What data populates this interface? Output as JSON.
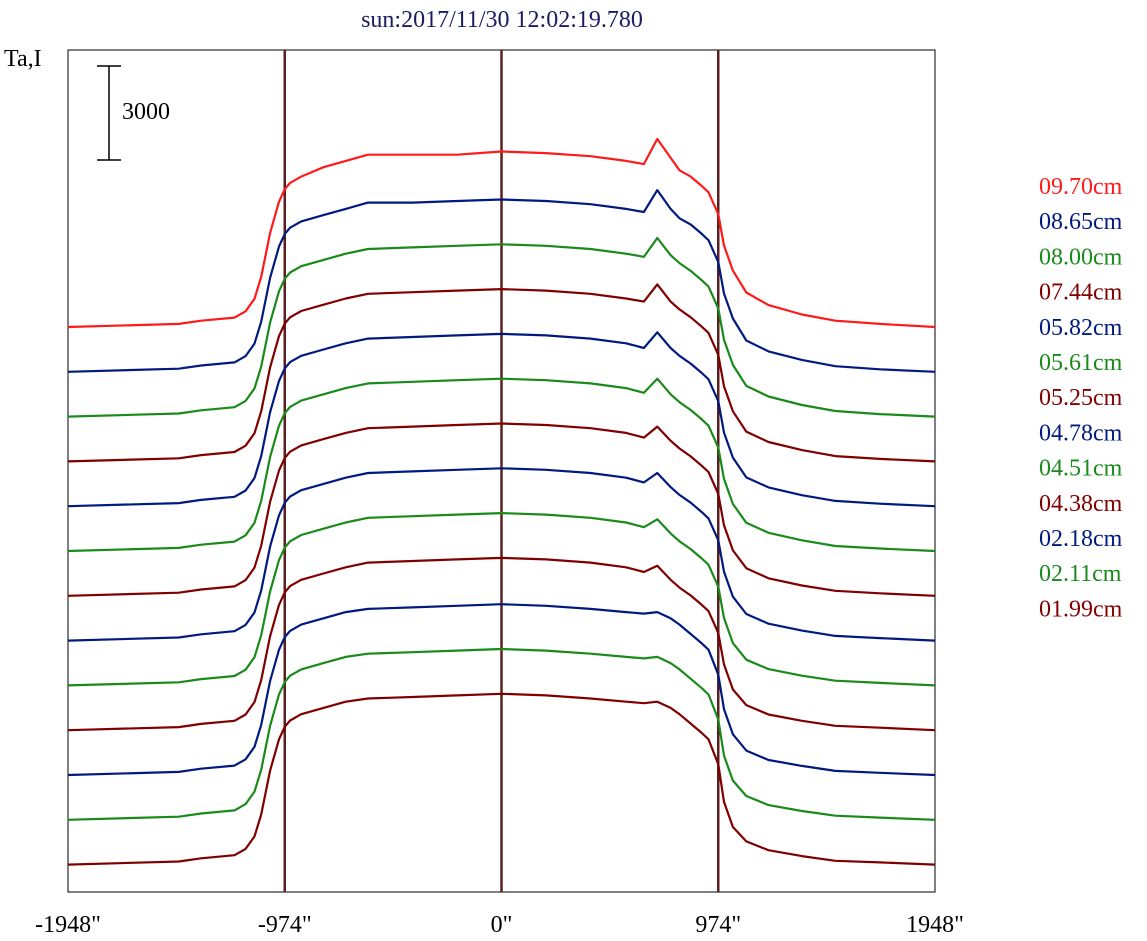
{
  "chart_data": {
    "type": "line",
    "title": "sun:2017/11/30 12:02:19.780",
    "ylabel": "Ta,I",
    "scale_bar_label": "3000",
    "scale_bar_value": 3000,
    "xlim": [
      -1948,
      1948
    ],
    "x_ticks": [
      {
        "value": -1948,
        "label": "-1948\""
      },
      {
        "value": -974,
        "label": "-974\""
      },
      {
        "value": 0,
        "label": "0\""
      },
      {
        "value": 974,
        "label": "974\""
      },
      {
        "value": 1948,
        "label": "1948\""
      }
    ],
    "vertical_lines": [
      -974,
      0,
      974
    ],
    "vertical_line_color": "#5a2020",
    "grid": false,
    "legend_position": "right",
    "offset_between_series": 1400,
    "profile_x": [
      -1948,
      -1450,
      -1350,
      -1200,
      -1150,
      -1110,
      -1080,
      -1040,
      -1000,
      -974,
      -950,
      -900,
      -800,
      -700,
      -600,
      -400,
      -200,
      0,
      200,
      400,
      560,
      640,
      700,
      760,
      800,
      850,
      900,
      930,
      974,
      1000,
      1040,
      1100,
      1200,
      1350,
      1500,
      1700,
      1948
    ],
    "series": [
      {
        "name": "09.70cm",
        "color": "#ff1a1a",
        "values": [
          0,
          100,
          200,
          300,
          500,
          900,
          1600,
          3000,
          4000,
          4400,
          4600,
          4800,
          5100,
          5300,
          5500,
          5500,
          5500,
          5600,
          5550,
          5450,
          5300,
          5200,
          6000,
          5400,
          5000,
          4800,
          4500,
          4300,
          3600,
          2600,
          1800,
          1100,
          700,
          400,
          200,
          100,
          0
        ]
      },
      {
        "name": "08.65cm",
        "color": "#001a80",
        "values": [
          0,
          100,
          200,
          300,
          500,
          900,
          1600,
          3000,
          4000,
          4400,
          4600,
          4800,
          5000,
          5200,
          5400,
          5400,
          5450,
          5500,
          5450,
          5350,
          5200,
          5100,
          5800,
          5200,
          4900,
          4700,
          4400,
          4200,
          3500,
          2500,
          1700,
          1000,
          650,
          380,
          180,
          80,
          0
        ]
      },
      {
        "name": "08.00cm",
        "color": "#1a8a1a",
        "values": [
          0,
          100,
          200,
          300,
          500,
          900,
          1600,
          3000,
          4000,
          4400,
          4600,
          4800,
          5000,
          5200,
          5350,
          5400,
          5450,
          5500,
          5450,
          5350,
          5200,
          5100,
          5700,
          5150,
          4900,
          4650,
          4350,
          4150,
          3450,
          2450,
          1650,
          980,
          640,
          370,
          180,
          80,
          0
        ]
      },
      {
        "name": "07.44cm",
        "color": "#800000",
        "values": [
          0,
          100,
          200,
          300,
          500,
          900,
          1600,
          3000,
          4000,
          4400,
          4600,
          4800,
          5000,
          5200,
          5350,
          5400,
          5450,
          5500,
          5450,
          5350,
          5200,
          5100,
          5650,
          5100,
          4850,
          4600,
          4300,
          4100,
          3400,
          2400,
          1600,
          950,
          620,
          360,
          170,
          80,
          0
        ]
      },
      {
        "name": "05.82cm",
        "color": "#001a80",
        "values": [
          0,
          100,
          200,
          300,
          500,
          900,
          1600,
          3000,
          4000,
          4400,
          4600,
          4800,
          5000,
          5200,
          5350,
          5400,
          5450,
          5500,
          5450,
          5350,
          5200,
          5050,
          5550,
          5050,
          4800,
          4550,
          4250,
          4050,
          3350,
          2350,
          1550,
          920,
          600,
          350,
          170,
          80,
          0
        ]
      },
      {
        "name": "05.61cm",
        "color": "#1a8a1a",
        "values": [
          0,
          100,
          200,
          300,
          500,
          900,
          1600,
          3000,
          4000,
          4400,
          4600,
          4800,
          5000,
          5200,
          5350,
          5400,
          5450,
          5500,
          5450,
          5350,
          5200,
          5050,
          5500,
          5000,
          4750,
          4500,
          4200,
          4000,
          3300,
          2300,
          1500,
          900,
          580,
          340,
          160,
          80,
          0
        ]
      },
      {
        "name": "05.25cm",
        "color": "#800000",
        "values": [
          0,
          100,
          200,
          300,
          500,
          900,
          1600,
          3000,
          4000,
          4400,
          4600,
          4800,
          5000,
          5200,
          5350,
          5400,
          5450,
          5500,
          5450,
          5350,
          5200,
          5050,
          5400,
          4950,
          4700,
          4450,
          4150,
          3950,
          3250,
          2250,
          1450,
          880,
          560,
          330,
          160,
          80,
          0
        ]
      },
      {
        "name": "04.78cm",
        "color": "#001a80",
        "values": [
          0,
          100,
          200,
          300,
          500,
          900,
          1600,
          3000,
          4000,
          4400,
          4600,
          4800,
          5000,
          5200,
          5350,
          5400,
          5450,
          5500,
          5450,
          5350,
          5200,
          5050,
          5350,
          4900,
          4650,
          4400,
          4100,
          3900,
          3200,
          2200,
          1400,
          850,
          540,
          320,
          150,
          80,
          0
        ]
      },
      {
        "name": "04.51cm",
        "color": "#1a8a1a",
        "values": [
          0,
          100,
          200,
          300,
          500,
          900,
          1600,
          3000,
          4000,
          4400,
          4600,
          4800,
          5000,
          5200,
          5350,
          5400,
          5450,
          5500,
          5450,
          5350,
          5200,
          5050,
          5300,
          4850,
          4600,
          4350,
          4050,
          3850,
          3150,
          2150,
          1350,
          820,
          520,
          310,
          150,
          80,
          0
        ]
      },
      {
        "name": "04.38cm",
        "color": "#800000",
        "values": [
          0,
          100,
          200,
          300,
          500,
          900,
          1600,
          3000,
          4000,
          4400,
          4600,
          4800,
          5000,
          5200,
          5350,
          5400,
          5450,
          5500,
          5450,
          5350,
          5200,
          5050,
          5250,
          4800,
          4550,
          4300,
          4000,
          3800,
          3100,
          2100,
          1300,
          800,
          500,
          300,
          140,
          80,
          0
        ]
      },
      {
        "name": "02.18cm",
        "color": "#001a80",
        "values": [
          0,
          100,
          200,
          300,
          500,
          900,
          1600,
          3000,
          4000,
          4400,
          4600,
          4800,
          5000,
          5200,
          5300,
          5350,
          5400,
          5450,
          5400,
          5300,
          5200,
          5150,
          5200,
          5000,
          4800,
          4500,
          4200,
          4000,
          3200,
          2100,
          1300,
          780,
          480,
          290,
          130,
          70,
          0
        ]
      },
      {
        "name": "02.11cm",
        "color": "#1a8a1a",
        "values": [
          0,
          100,
          200,
          300,
          500,
          900,
          1600,
          3000,
          4000,
          4400,
          4600,
          4800,
          5000,
          5200,
          5300,
          5350,
          5400,
          5450,
          5400,
          5300,
          5200,
          5150,
          5200,
          5000,
          4800,
          4500,
          4200,
          4000,
          3200,
          2050,
          1250,
          760,
          470,
          280,
          130,
          70,
          0
        ]
      },
      {
        "name": "01.99cm",
        "color": "#800000",
        "values": [
          0,
          100,
          200,
          300,
          500,
          900,
          1600,
          3000,
          4000,
          4400,
          4600,
          4800,
          5000,
          5200,
          5300,
          5350,
          5400,
          5450,
          5400,
          5300,
          5200,
          5150,
          5200,
          5000,
          4800,
          4500,
          4200,
          4000,
          3200,
          2000,
          1200,
          740,
          460,
          270,
          120,
          70,
          0
        ]
      }
    ]
  }
}
